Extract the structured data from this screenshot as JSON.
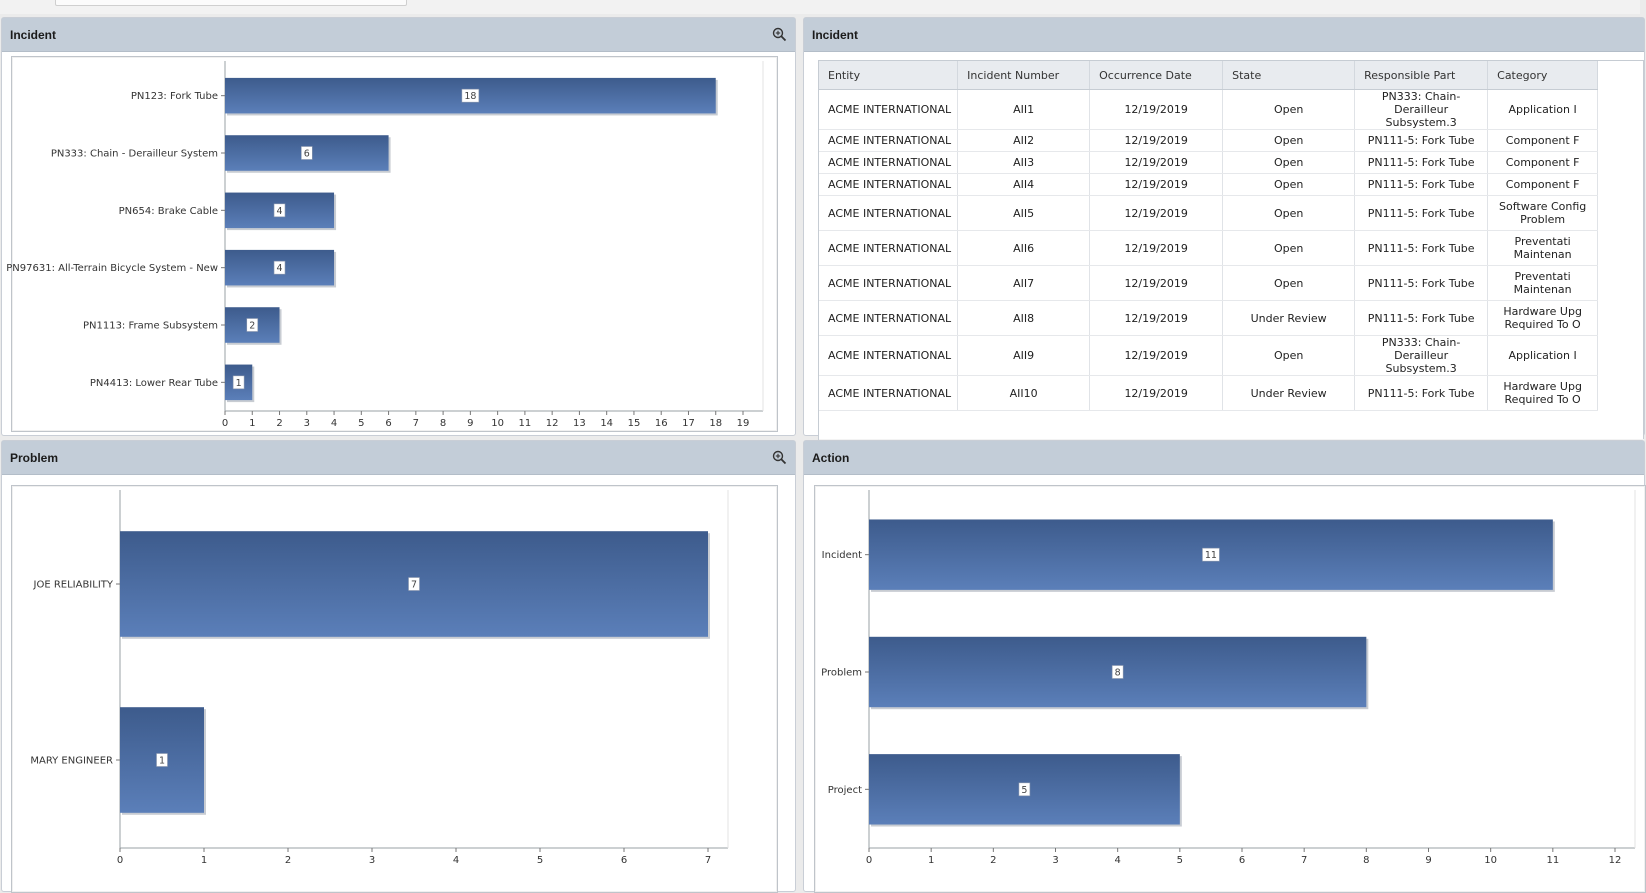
{
  "panels": {
    "incident_chart": {
      "title": "Incident"
    },
    "incident_table": {
      "title": "Incident"
    },
    "problem_chart": {
      "title": "Problem"
    },
    "action_chart": {
      "title": "Action"
    }
  },
  "icons": {
    "zoom": "zoom-in-icon"
  },
  "colors": {
    "bar_top": "#3d5b8c",
    "bar_bottom": "#5b7fb9",
    "header_bg": "#c3cdd8"
  },
  "table": {
    "columns": [
      "Entity",
      "Incident Number",
      "Occurrence Date",
      "State",
      "Responsible Part",
      "Category"
    ],
    "rows": [
      {
        "entity": "ACME INTERNATIONAL",
        "number": "AII1",
        "date": "12/19/2019",
        "state": "Open",
        "part": "PN333: Chain-Derailleur Subsystem.3",
        "category": "Application I"
      },
      {
        "entity": "ACME INTERNATIONAL",
        "number": "AII2",
        "date": "12/19/2019",
        "state": "Open",
        "part": "PN111-5: Fork Tube",
        "category": "Component F"
      },
      {
        "entity": "ACME INTERNATIONAL",
        "number": "AII3",
        "date": "12/19/2019",
        "state": "Open",
        "part": "PN111-5: Fork Tube",
        "category": "Component F"
      },
      {
        "entity": "ACME INTERNATIONAL",
        "number": "AII4",
        "date": "12/19/2019",
        "state": "Open",
        "part": "PN111-5: Fork Tube",
        "category": "Component F"
      },
      {
        "entity": "ACME INTERNATIONAL",
        "number": "AII5",
        "date": "12/19/2019",
        "state": "Open",
        "part": "PN111-5: Fork Tube",
        "category": "Software Config Problem"
      },
      {
        "entity": "ACME INTERNATIONAL",
        "number": "AII6",
        "date": "12/19/2019",
        "state": "Open",
        "part": "PN111-5: Fork Tube",
        "category": "Preventati Maintenan"
      },
      {
        "entity": "ACME INTERNATIONAL",
        "number": "AII7",
        "date": "12/19/2019",
        "state": "Open",
        "part": "PN111-5: Fork Tube",
        "category": "Preventati Maintenan"
      },
      {
        "entity": "ACME INTERNATIONAL",
        "number": "AII8",
        "date": "12/19/2019",
        "state": "Under Review",
        "part": "PN111-5: Fork Tube",
        "category": "Hardware Upg Required To O"
      },
      {
        "entity": "ACME INTERNATIONAL",
        "number": "AII9",
        "date": "12/19/2019",
        "state": "Open",
        "part": "PN333: Chain-Derailleur Subsystem.3",
        "category": "Application I"
      },
      {
        "entity": "ACME INTERNATIONAL",
        "number": "AII10",
        "date": "12/19/2019",
        "state": "Under Review",
        "part": "PN111-5: Fork Tube",
        "category": "Hardware Upg Required To O"
      }
    ]
  },
  "chart_data": [
    {
      "id": "incident",
      "type": "bar",
      "orientation": "horizontal",
      "title": "Incident",
      "categories": [
        "PN123: Fork Tube",
        "PN333: Chain - Derailleur System",
        "PN654: Brake Cable",
        "PN97631: All-Terrain Bicycle System - New",
        "PN1113: Frame Subsystem",
        "PN4413: Lower Rear Tube"
      ],
      "values": [
        18,
        6,
        4,
        4,
        2,
        1
      ],
      "xlim": [
        0,
        19
      ],
      "xticks": [
        0,
        1,
        2,
        3,
        4,
        5,
        6,
        7,
        8,
        9,
        10,
        11,
        12,
        13,
        14,
        15,
        16,
        17,
        18,
        19
      ],
      "grid": false
    },
    {
      "id": "problem",
      "type": "bar",
      "orientation": "horizontal",
      "title": "Problem",
      "categories": [
        "JOE RELIABILITY",
        "MARY ENGINEER"
      ],
      "values": [
        7,
        1
      ],
      "xlim": [
        0,
        7
      ],
      "xticks": [
        0,
        1,
        2,
        3,
        4,
        5,
        6,
        7
      ],
      "grid": false
    },
    {
      "id": "action",
      "type": "bar",
      "orientation": "horizontal",
      "title": "Action",
      "categories": [
        "Incident",
        "Problem",
        "Project"
      ],
      "values": [
        11,
        8,
        5
      ],
      "xlim": [
        0,
        12
      ],
      "xticks": [
        0,
        1,
        2,
        3,
        4,
        5,
        6,
        7,
        8,
        9,
        10,
        11,
        12
      ],
      "grid": false
    }
  ]
}
